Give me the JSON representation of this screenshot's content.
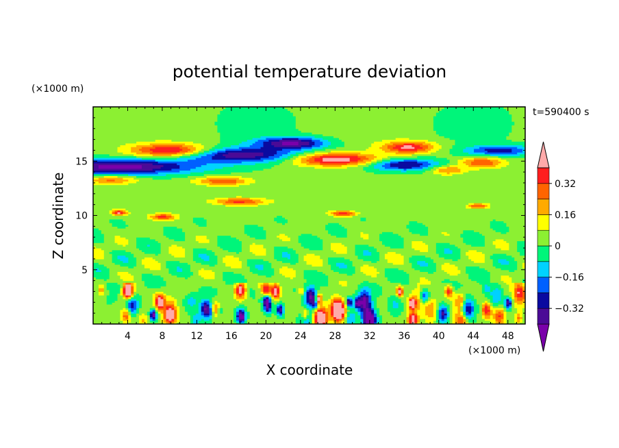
{
  "chart_data": {
    "type": "heatmap",
    "title": "potential temperature deviation",
    "xlabel": "X coordinate",
    "ylabel": "Z coordinate",
    "x_unit": "(×1000 m)",
    "y_unit": "(×1000 m)",
    "time_label": "t=590400 s",
    "xlim": [
      0,
      50
    ],
    "ylim": [
      0,
      20
    ],
    "x_ticks": [
      4,
      8,
      12,
      16,
      20,
      24,
      28,
      32,
      36,
      40,
      44,
      48
    ],
    "x_tick_labels": [
      "4",
      "8",
      "12",
      "16",
      "20",
      "24",
      "28",
      "32",
      "36",
      "40",
      "44",
      "48"
    ],
    "y_ticks": [
      5,
      10,
      15
    ],
    "y_tick_labels": [
      "5",
      "10",
      "15"
    ],
    "colorbar": {
      "levels": [
        -0.48,
        -0.4,
        -0.32,
        -0.24,
        -0.16,
        -0.08,
        0,
        0.08,
        0.16,
        0.24,
        0.32,
        0.4,
        0.48
      ],
      "tick_values": [
        0.32,
        0.16,
        0,
        -0.16,
        -0.32
      ],
      "tick_labels": [
        "0.32",
        "0.16",
        "0",
        "−0.16",
        "−0.32"
      ],
      "colors": [
        "#7a00aa",
        "#4b0a96",
        "#0a0aa0",
        "#0060ff",
        "#00d2ff",
        "#00f57a",
        "#8cf032",
        "#ffff00",
        "#ffaa00",
        "#ff6400",
        "#ff1e1e",
        "#ffaaaa"
      ]
    },
    "field_description": {
      "background_value": 0.02,
      "bands": [
        {
          "z_range": [
            14,
            15
          ],
          "sign": "negative",
          "min": -0.48
        },
        {
          "z_range": [
            15,
            17
          ],
          "sign": "positive",
          "max": 0.48
        },
        {
          "z_range": [
            10,
            11.5
          ],
          "sign": "positive",
          "max": 0.4
        },
        {
          "z_range": [
            0,
            3.5
          ],
          "sign": "mixed",
          "min": -0.48,
          "max": 0.48
        }
      ]
    }
  }
}
